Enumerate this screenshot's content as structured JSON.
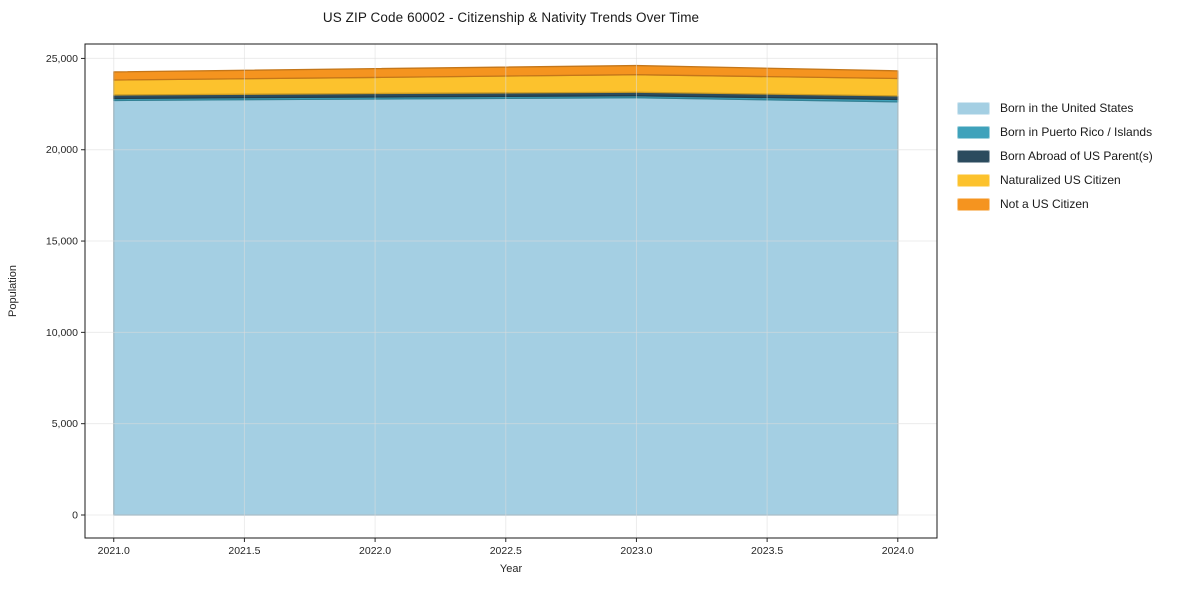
{
  "chart_data": {
    "type": "area",
    "stacked": true,
    "title": "US ZIP Code 60002 - Citizenship & Nativity Trends Over Time",
    "xlabel": "Year",
    "ylabel": "Population",
    "x": [
      2021,
      2022,
      2023,
      2024
    ],
    "series": [
      {
        "name": "Born in the United States",
        "color": "#a4cfe3",
        "values": [
          22700,
          22780,
          22850,
          22620
        ]
      },
      {
        "name": "Born in Puerto Rico / Islands",
        "color": "#3fa2bb",
        "values": [
          110,
          110,
          110,
          130
        ]
      },
      {
        "name": "Born Abroad of US Parent(s)",
        "color": "#2b4b5e",
        "values": [
          190,
          190,
          190,
          200
        ]
      },
      {
        "name": "Naturalized US Citizen",
        "color": "#fcc22d",
        "values": [
          820,
          880,
          960,
          950
        ]
      },
      {
        "name": "Not a US Citizen",
        "color": "#f5941f",
        "values": [
          440,
          480,
          500,
          420
        ]
      }
    ],
    "xlim": [
      2020.89,
      2024.15
    ],
    "ylim": [
      -1260,
      25790
    ],
    "xticks": [
      2021.0,
      2021.5,
      2022.0,
      2022.5,
      2023.0,
      2023.5,
      2024.0
    ],
    "xtick_labels": [
      "2021.0",
      "2021.5",
      "2022.0",
      "2022.5",
      "2023.0",
      "2023.5",
      "2024.0"
    ],
    "yticks": [
      0,
      5000,
      10000,
      15000,
      20000,
      25000
    ],
    "ytick_labels": [
      "0",
      "5,000",
      "10,000",
      "15,000",
      "20,000",
      "25,000"
    ],
    "grid": true,
    "legend_position": "right"
  }
}
